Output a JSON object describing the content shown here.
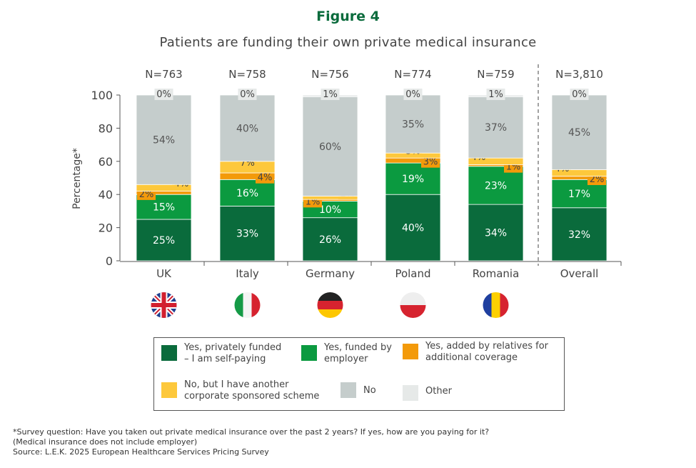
{
  "figure_label": "Figure 4",
  "chart_data": {
    "type": "bar",
    "stacked": true,
    "title": "Patients are funding their own private medical insurance",
    "ylabel": "Percentage*",
    "xlabel": "",
    "ylim": [
      0,
      100
    ],
    "yticks": [
      "0",
      "20",
      "40",
      "60",
      "80",
      "100"
    ],
    "grid": false,
    "categories": [
      "UK",
      "Italy",
      "Germany",
      "Poland",
      "Romania",
      "Overall"
    ],
    "sample_sizes": [
      "N=763",
      "N=758",
      "N=756",
      "N=774",
      "N=759",
      "N=3,810"
    ],
    "flags": [
      "uk-flag",
      "italy-flag",
      "germany-flag",
      "poland-flag",
      "romania-flag",
      ""
    ],
    "series": [
      {
        "name": "Yes, privately funded – I am self-paying",
        "color": "#0a6b3c",
        "values": [
          25,
          33,
          26,
          40,
          34,
          32
        ]
      },
      {
        "name": "Yes, funded by employer",
        "color": "#0b9a40",
        "values": [
          15,
          16,
          10,
          19,
          23,
          17
        ]
      },
      {
        "name": "Yes, added by relatives for additional coverage",
        "color": "#f39a0a",
        "values": [
          2,
          4,
          1,
          3,
          1,
          2
        ]
      },
      {
        "name": "No, but I have another corporate sponsored scheme",
        "color": "#fdc83c",
        "values": [
          4,
          7,
          2,
          3,
          4,
          4
        ]
      },
      {
        "name": "No",
        "color": "#c5cdcc",
        "values": [
          54,
          40,
          60,
          35,
          37,
          45
        ]
      },
      {
        "name": "Other",
        "color": "#e6e9e8",
        "values": [
          0,
          0,
          1,
          0,
          1,
          0
        ]
      }
    ],
    "legend_position": "bottom"
  },
  "legend": {
    "self": [
      "Yes, privately funded",
      "– I am self-paying"
    ],
    "employer": [
      "Yes, funded by",
      "employer"
    ],
    "relatives": [
      "Yes, added by relatives for",
      "additional coverage"
    ],
    "corporate": [
      "No, but I have another",
      "corporate sponsored scheme"
    ],
    "no": "No",
    "other": "Other"
  },
  "footnote": [
    "*Survey question: Have you taken out private medical insurance over the past 2 years? If yes, how are you paying for it?",
    "(Medical insurance does not include employer)",
    "Source: L.E.K. 2025 European Healthcare Services Pricing Survey"
  ]
}
